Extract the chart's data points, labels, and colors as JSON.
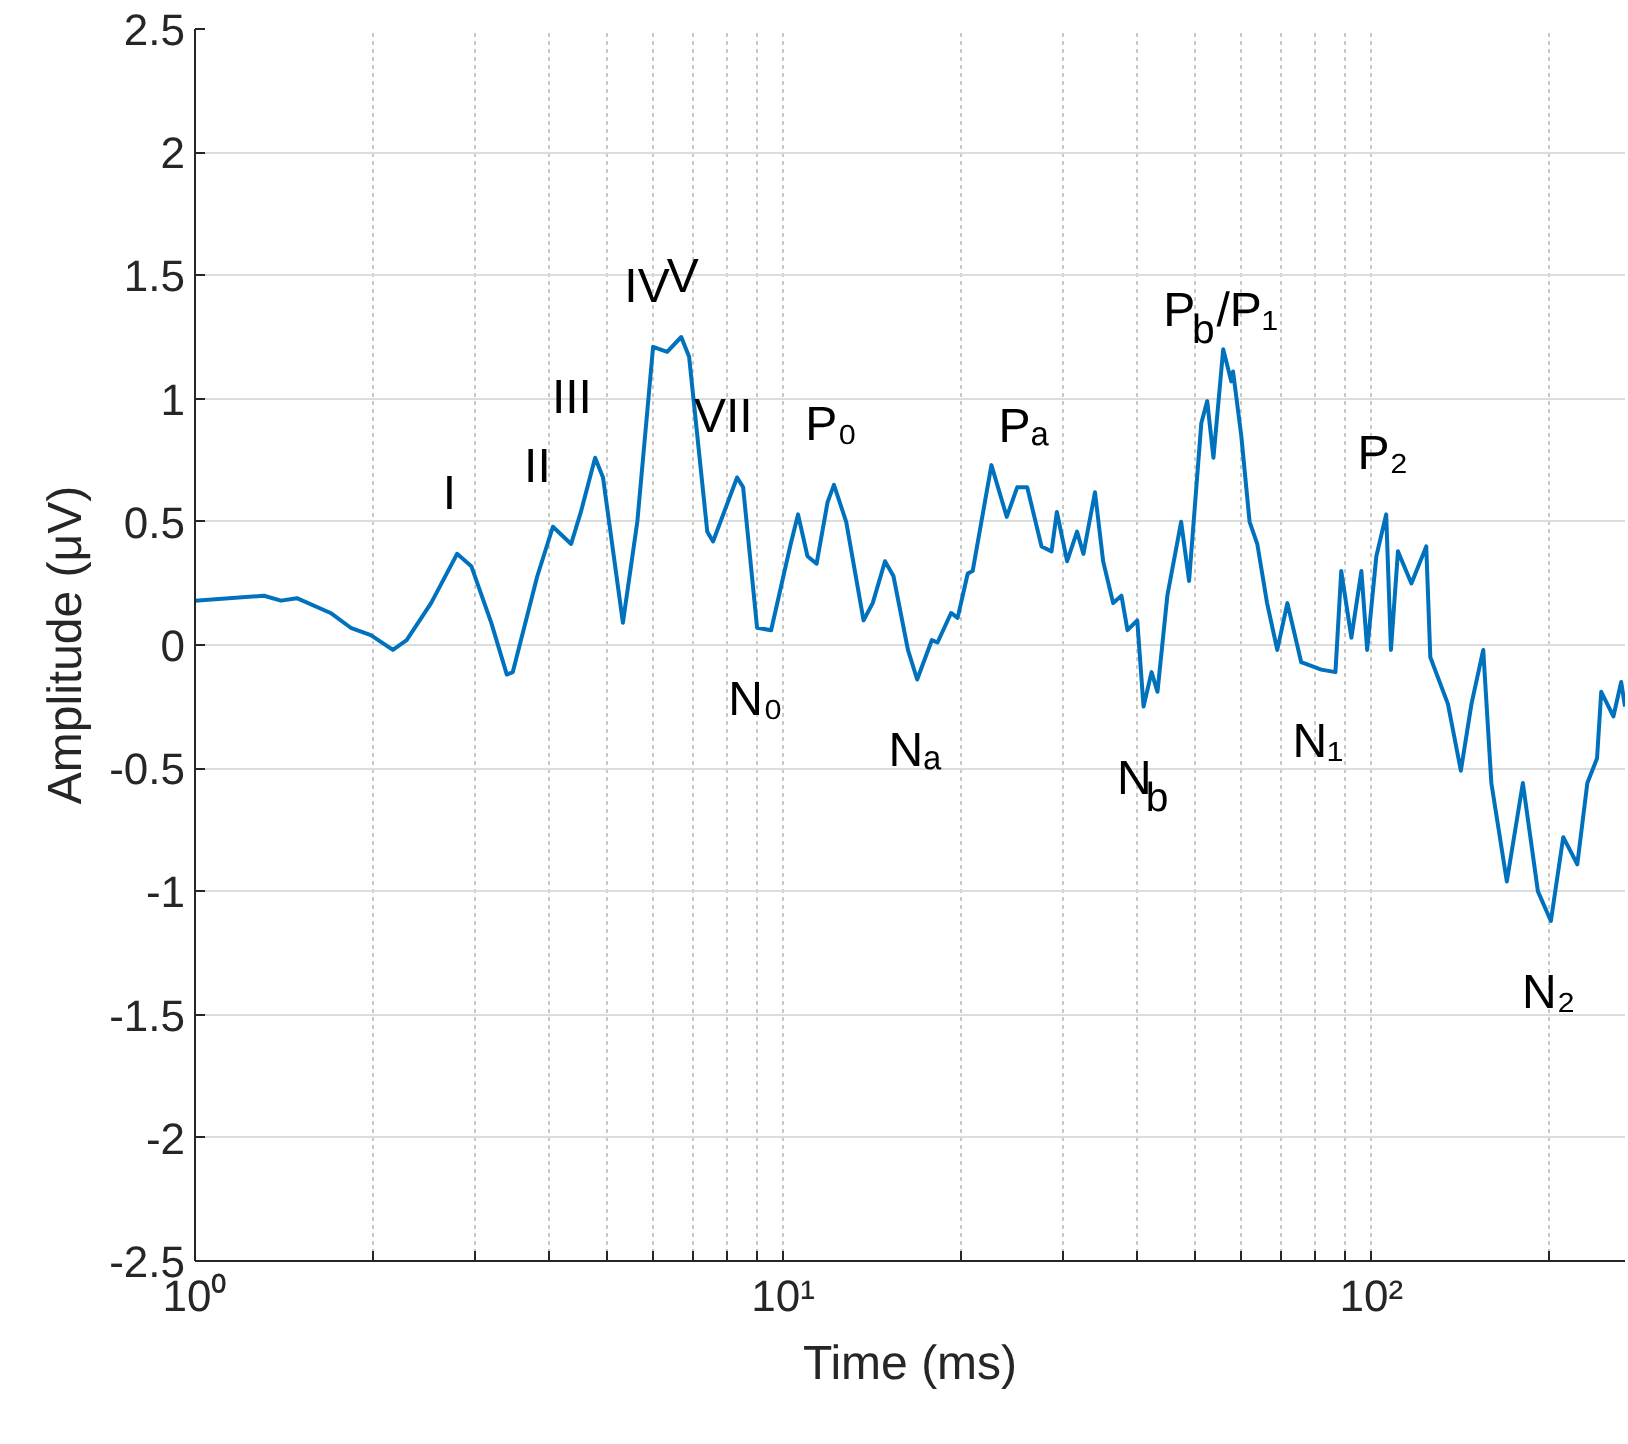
{
  "chart_data": {
    "type": "line",
    "xlabel": "Time (ms)",
    "ylabel": "Amplitude (μV)",
    "log": "x",
    "grid": true,
    "line_style": "solid",
    "marker": "none",
    "xlim": [
      1,
      270
    ],
    "ylim": [
      -2.5,
      2.5
    ],
    "xticks": [
      {
        "value": 1,
        "label": "10⁰"
      },
      {
        "value": 2,
        "label": null
      },
      {
        "value": 3,
        "label": null
      },
      {
        "value": 4,
        "label": null
      },
      {
        "value": 5,
        "label": null
      },
      {
        "value": 6,
        "label": null
      },
      {
        "value": 7,
        "label": null
      },
      {
        "value": 8,
        "label": null
      },
      {
        "value": 9,
        "label": null
      },
      {
        "value": 10,
        "label": "10¹"
      },
      {
        "value": 20,
        "label": null
      },
      {
        "value": 30,
        "label": null
      },
      {
        "value": 40,
        "label": null
      },
      {
        "value": 50,
        "label": null
      },
      {
        "value": 60,
        "label": null
      },
      {
        "value": 70,
        "label": null
      },
      {
        "value": 80,
        "label": null
      },
      {
        "value": 90,
        "label": null
      },
      {
        "value": 100,
        "label": "10²"
      },
      {
        "value": 200,
        "label": null
      }
    ],
    "yticks": [
      -2.5,
      -2,
      -1.5,
      -1,
      -0.5,
      0,
      0.5,
      1,
      1.5,
      2,
      2.5
    ],
    "series": [
      {
        "color": "#0072bd",
        "x": [
          1.0,
          1.31,
          1.4,
          1.49,
          1.7,
          1.84,
          1.99,
          2.17,
          2.29,
          2.52,
          2.79,
          2.95,
          3.19,
          3.39,
          3.47,
          3.82,
          4.06,
          4.36,
          4.53,
          4.79,
          4.94,
          5.34,
          5.65,
          6.01,
          6.35,
          6.71,
          6.92,
          7.43,
          7.6,
          8.35,
          8.55,
          9.03,
          9.54,
          10.3,
          10.6,
          11.0,
          11.4,
          11.9,
          12.2,
          12.8,
          13.7,
          14.2,
          14.9,
          15.4,
          16.3,
          16.9,
          17.9,
          18.3,
          19.3,
          19.8,
          20.6,
          21.0,
          22.6,
          24.0,
          25.0,
          26.0,
          27.5,
          28.6,
          29.2,
          30.4,
          31.6,
          32.4,
          33.9,
          35.0,
          36.4,
          37.6,
          38.5,
          40.0,
          41.0,
          42.3,
          43.3,
          45.0,
          47.5,
          49.0,
          51.4,
          52.6,
          53.9,
          56.0,
          57.8,
          58.2,
          60.1,
          62.1,
          64.0,
          66.5,
          69.2,
          72.0,
          76.0,
          82.2,
          86.9,
          88.9,
          92.5,
          96.2,
          98.4,
          102,
          106,
          108,
          111,
          117,
          124,
          126,
          135,
          142,
          148,
          155,
          160,
          170,
          181,
          192,
          202,
          212,
          224,
          233,
          242,
          246,
          258,
          266,
          270
        ],
        "values": [
          0.18,
          0.2,
          0.18,
          0.19,
          0.13,
          0.07,
          0.04,
          -0.02,
          0.02,
          0.17,
          0.37,
          0.32,
          0.09,
          -0.12,
          -0.11,
          0.28,
          0.48,
          0.41,
          0.54,
          0.76,
          0.68,
          0.09,
          0.5,
          1.21,
          1.19,
          1.25,
          1.17,
          0.46,
          0.42,
          0.68,
          0.64,
          0.07,
          0.06,
          0.41,
          0.53,
          0.36,
          0.33,
          0.58,
          0.65,
          0.5,
          0.1,
          0.17,
          0.34,
          0.28,
          -0.02,
          -0.14,
          0.02,
          0.01,
          0.13,
          0.11,
          0.29,
          0.3,
          0.73,
          0.52,
          0.64,
          0.64,
          0.4,
          0.38,
          0.54,
          0.34,
          0.46,
          0.37,
          0.62,
          0.34,
          0.17,
          0.2,
          0.06,
          0.1,
          -0.25,
          -0.11,
          -0.19,
          0.2,
          0.5,
          0.26,
          0.9,
          0.99,
          0.76,
          1.2,
          1.07,
          1.11,
          0.85,
          0.5,
          0.41,
          0.17,
          -0.02,
          0.17,
          -0.07,
          -0.1,
          -0.11,
          0.3,
          0.03,
          0.3,
          -0.02,
          0.36,
          0.53,
          -0.02,
          0.38,
          0.25,
          0.4,
          -0.05,
          -0.24,
          -0.51,
          -0.24,
          -0.02,
          -0.56,
          -0.96,
          -0.56,
          -1.0,
          -1.12,
          -0.78,
          -0.89,
          -0.56,
          -0.46,
          -0.19,
          -0.29,
          -0.15,
          -0.25
        ]
      }
    ],
    "annotations": [
      {
        "text": "I",
        "x": 2.79,
        "y": 0.37
      },
      {
        "text": "II",
        "x": 4.06,
        "y": 0.48
      },
      {
        "text": "III",
        "x": 4.79,
        "y": 0.76
      },
      {
        "text": "IV",
        "x": 6.01,
        "y": 1.21
      },
      {
        "text": "V",
        "x": 6.71,
        "y": 1.25
      },
      {
        "text": "VII",
        "x": 8.35,
        "y": 0.68
      },
      {
        "text": "P₀",
        "x": 12.2,
        "y": 0.65
      },
      {
        "text": "N₀",
        "x": 9.03,
        "y": 0.07
      },
      {
        "text": "Nₐ",
        "x": 16.9,
        "y": -0.14
      },
      {
        "text": "Pₐ",
        "x": 26.0,
        "y": 0.64
      },
      {
        "text": "N$_{b}$",
        "x": 41.0,
        "y": -0.25
      },
      {
        "text": "P$_{b}$/P₁",
        "x": 58.2,
        "y": 1.11
      },
      {
        "text": "N₁",
        "x": 82.2,
        "y": -0.1
      },
      {
        "text": "P₂",
        "x": 106,
        "y": 0.53
      },
      {
        "text": "N₂",
        "x": 202,
        "y": -1.12
      }
    ]
  }
}
